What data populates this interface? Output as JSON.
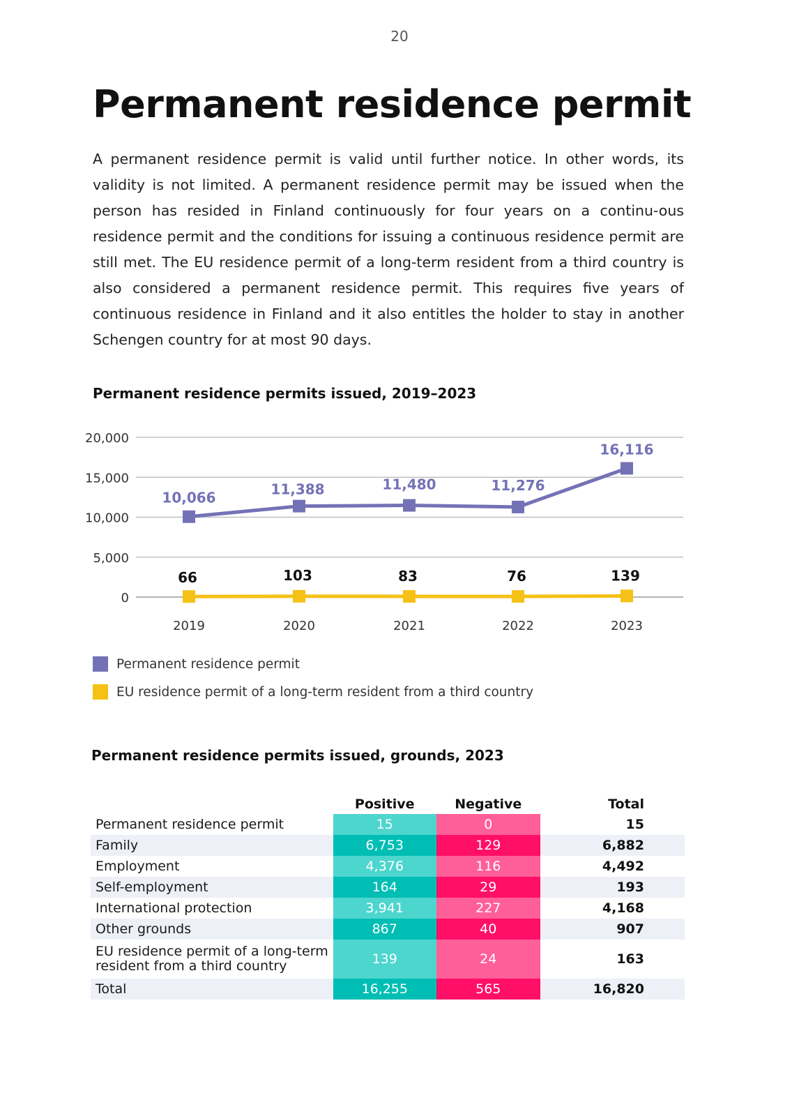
{
  "page": {
    "number": "20",
    "title": "Permanent residence permit",
    "intro": "A permanent residence permit is valid until further notice. In other words, its validity is not limited. A permanent residence permit may be issued when the person has resided in Finland continuously for four years on a continu-ous residence permit and the conditions for issuing a continuous residence permit are still met. The EU residence permit of a long-term resident from a third country is also considered a permanent residence permit. This requires five years of continuous residence in Finland and it also entitles the holder to stay in another Schengen country for at most 90 days."
  },
  "chart_data": {
    "type": "line",
    "title": "Permanent residence permits issued, 2019–2023",
    "x": [
      "2019",
      "2020",
      "2021",
      "2022",
      "2023"
    ],
    "ylim": [
      0,
      20000
    ],
    "yticks": [
      0,
      5000,
      10000,
      15000,
      20000
    ],
    "ytick_labels": [
      "0",
      "5,000",
      "10,000",
      "15,000",
      "20,000"
    ],
    "grid": true,
    "legend_position": "bottom-left",
    "series": [
      {
        "name": "Permanent residence permit",
        "color": "#7472b6",
        "values": [
          10066,
          11388,
          11480,
          11276,
          16116
        ],
        "labels": [
          "10,066",
          "11,388",
          "11,480",
          "11,276",
          "16,116"
        ]
      },
      {
        "name": "EU residence permit of a long-term resident from a third country",
        "color": "#f5c116",
        "values": [
          66,
          103,
          83,
          76,
          139
        ],
        "labels": [
          "66",
          "103",
          "83",
          "76",
          "139"
        ]
      }
    ]
  },
  "table": {
    "title": "Permanent residence permits issued, grounds, 2023",
    "headers": [
      "",
      "Positive",
      "Negative",
      "Total"
    ],
    "rows": [
      {
        "label": "Permanent residence permit",
        "positive": "15",
        "negative": "0",
        "total": "15"
      },
      {
        "label": "Family",
        "positive": "6,753",
        "negative": "129",
        "total": "6,882"
      },
      {
        "label": "Employment",
        "positive": "4,376",
        "negative": "116",
        "total": "4,492"
      },
      {
        "label": "Self-employment",
        "positive": "164",
        "negative": "29",
        "total": "193"
      },
      {
        "label": "International protection",
        "positive": "3,941",
        "negative": "227",
        "total": "4,168"
      },
      {
        "label": "Other grounds",
        "positive": "867",
        "negative": "40",
        "total": "907"
      },
      {
        "label": "EU residence permit of a long-term resident from a third country",
        "positive": "139",
        "negative": "24",
        "total": "163"
      },
      {
        "label": "Total",
        "positive": "16,255",
        "negative": "565",
        "total": "16,820"
      }
    ]
  }
}
